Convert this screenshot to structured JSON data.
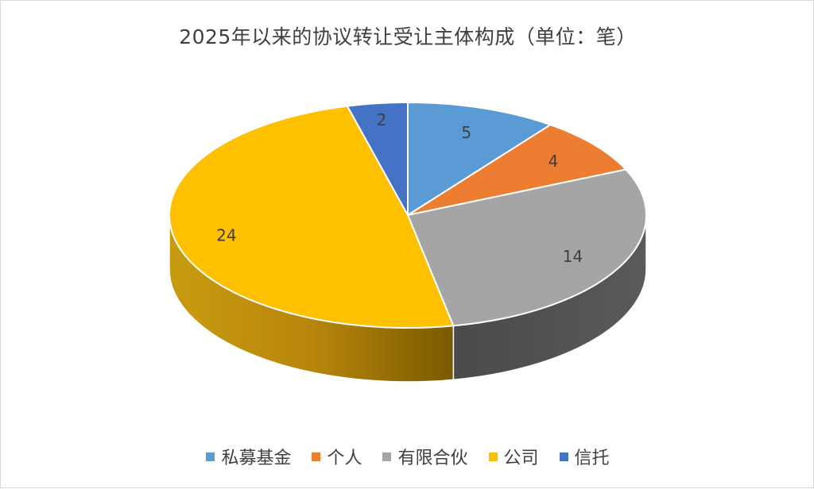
{
  "chart_data": {
    "type": "pie",
    "title": "2025年以来的协议转让受让主体构成（单位：笔）",
    "slices": [
      {
        "name": "私募基金",
        "value": 5,
        "color": "#5b9bd5"
      },
      {
        "name": "个人",
        "value": 4,
        "color": "#ed7d31"
      },
      {
        "name": "有限合伙",
        "value": 14,
        "color": "#a5a5a5"
      },
      {
        "name": "公司",
        "value": 24,
        "color": "#ffc000"
      },
      {
        "name": "信托",
        "value": 2,
        "color": "#4472c4"
      }
    ],
    "data_labels": true,
    "legend": "bottom",
    "style": "3d-pie"
  }
}
